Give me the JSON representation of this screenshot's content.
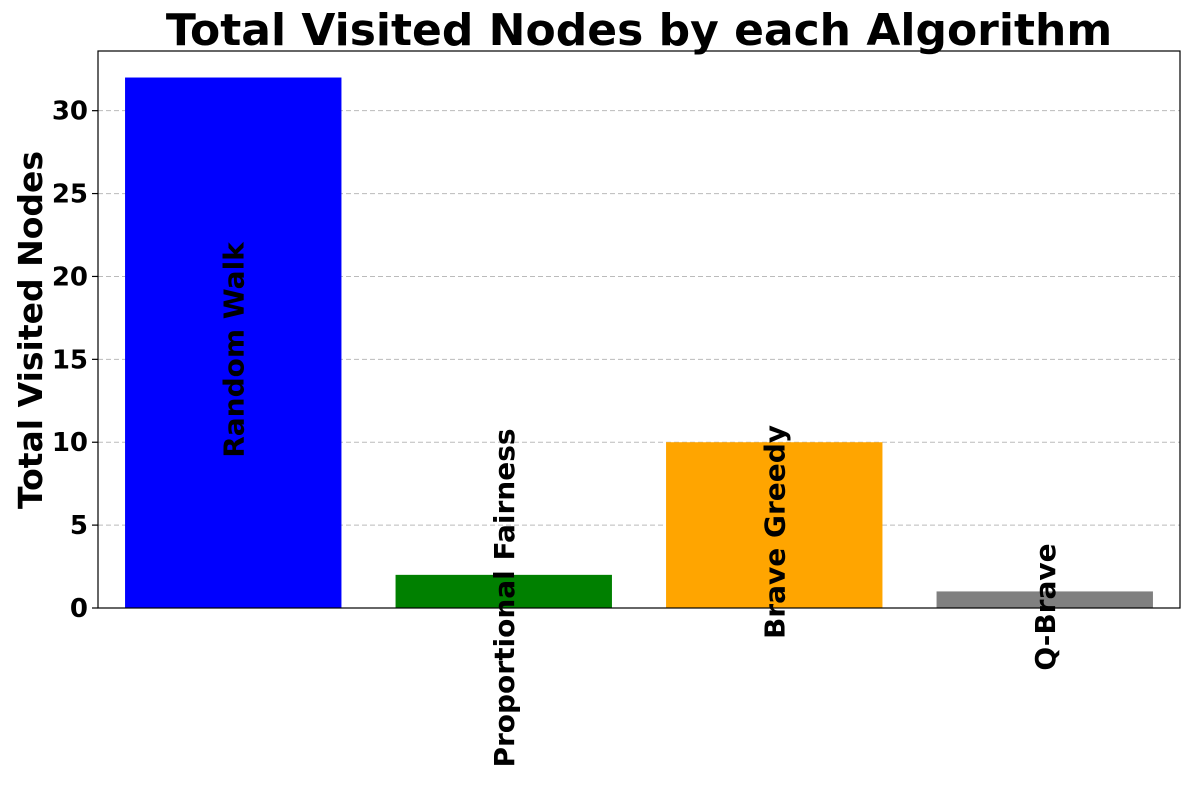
{
  "chart_data": {
    "type": "bar",
    "title": "Total Visited Nodes by each Algorithm",
    "xlabel": "",
    "ylabel": "Total Visited Nodes",
    "categories": [
      "Random Walk",
      "Proportional Fairness",
      "Brave Greedy",
      "Q-Brave"
    ],
    "values": [
      32,
      2,
      10,
      1
    ],
    "colors": [
      "#0000ff",
      "#008000",
      "#ffa500",
      "#808080"
    ],
    "ylim": [
      0,
      33.6
    ],
    "yticks": [
      0,
      5,
      10,
      15,
      20,
      25,
      30
    ],
    "grid": "y-dashed",
    "legend": "none",
    "bar_labels": "rotated-vertical"
  }
}
